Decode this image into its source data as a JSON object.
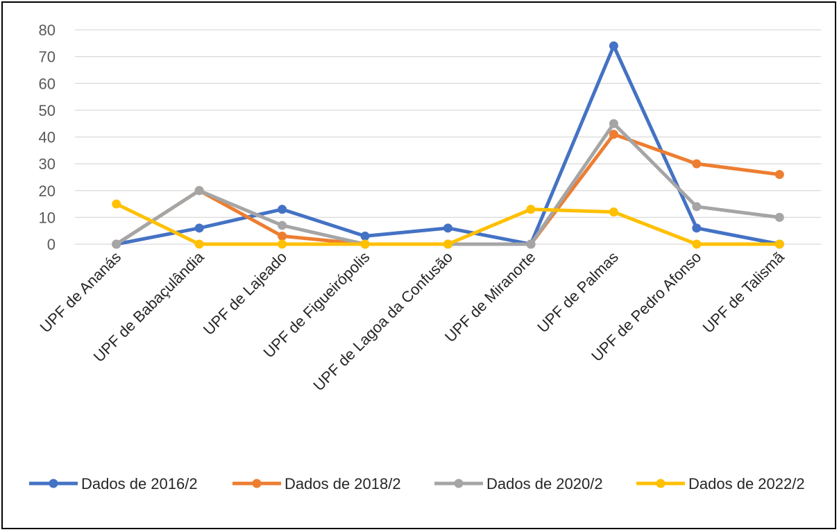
{
  "chart_data": {
    "type": "line",
    "title": "",
    "xlabel": "",
    "ylabel": "",
    "ylim": [
      0,
      80
    ],
    "yticks": [
      0,
      10,
      20,
      30,
      40,
      50,
      60,
      70,
      80
    ],
    "grid": true,
    "legend_position": "bottom",
    "categories": [
      "UPF de Ananás",
      "UPF de Babaçulândia",
      "UPF de Lajeado",
      "UPF de Figueirópolis",
      "UPF de Lagoa da Confusão",
      "UPF de Miranorte",
      "UPF de Palmas",
      "UPF de Pedro Afonso",
      "UPF de Talismã"
    ],
    "series": [
      {
        "name": "Dados de 2016/2",
        "color": "#4472C4",
        "values": [
          0,
          6,
          13,
          3,
          6,
          0,
          74,
          6,
          0
        ]
      },
      {
        "name": "Dados de 2018/2",
        "color": "#ED7D31",
        "values": [
          0,
          20,
          3,
          0,
          0,
          0,
          41,
          30,
          26
        ]
      },
      {
        "name": "Dados de 2020/2",
        "color": "#A5A5A5",
        "values": [
          0,
          20,
          7,
          0,
          0,
          0,
          45,
          14,
          10
        ]
      },
      {
        "name": "Dados de 2022/2",
        "color": "#FFC000",
        "values": [
          15,
          0,
          0,
          0,
          0,
          13,
          12,
          0,
          0
        ]
      }
    ]
  }
}
